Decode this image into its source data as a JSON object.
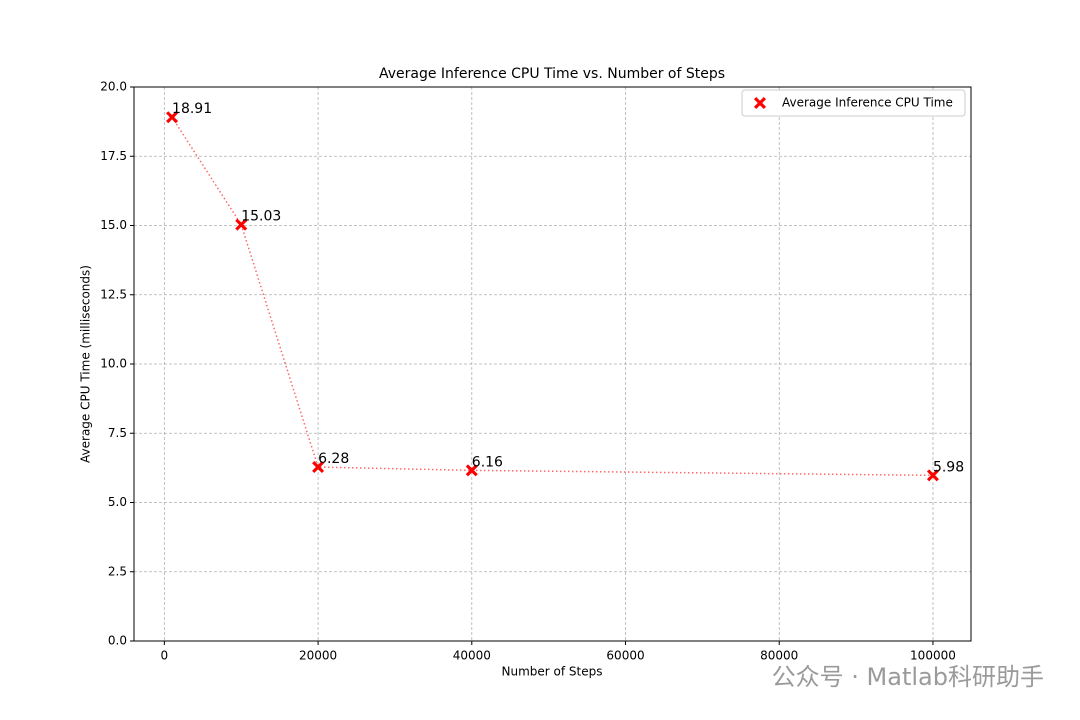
{
  "chart_data": {
    "type": "line",
    "title": "Average Inference CPU Time vs. Number of Steps",
    "xlabel": "Number of Steps",
    "ylabel": "Average CPU Time (milliseconds)",
    "x": [
      1000,
      10000,
      20000,
      40000,
      100000
    ],
    "series": [
      {
        "name": "Average Inference CPU Time",
        "color": "#ff0000",
        "values": [
          18.91,
          15.03,
          6.28,
          6.16,
          5.98
        ]
      }
    ],
    "line_style": "dotted",
    "xlim": [
      -3950,
      104950
    ],
    "xticks": [
      0,
      20000,
      40000,
      60000,
      80000,
      100000
    ],
    "ylim": [
      0,
      20
    ],
    "yticks": [
      {
        "value": 0,
        "label": "0.0"
      },
      2.5,
      {
        "value": 5,
        "label": "5.0"
      },
      7.5,
      {
        "value": 10,
        "label": "10.0"
      },
      12.5,
      {
        "value": 15,
        "label": "15.0"
      },
      17.5,
      {
        "value": 20,
        "label": "20.0"
      }
    ],
    "grid": true,
    "legend": "upper right",
    "watermark": "公众号 · Matlab科研助手"
  }
}
